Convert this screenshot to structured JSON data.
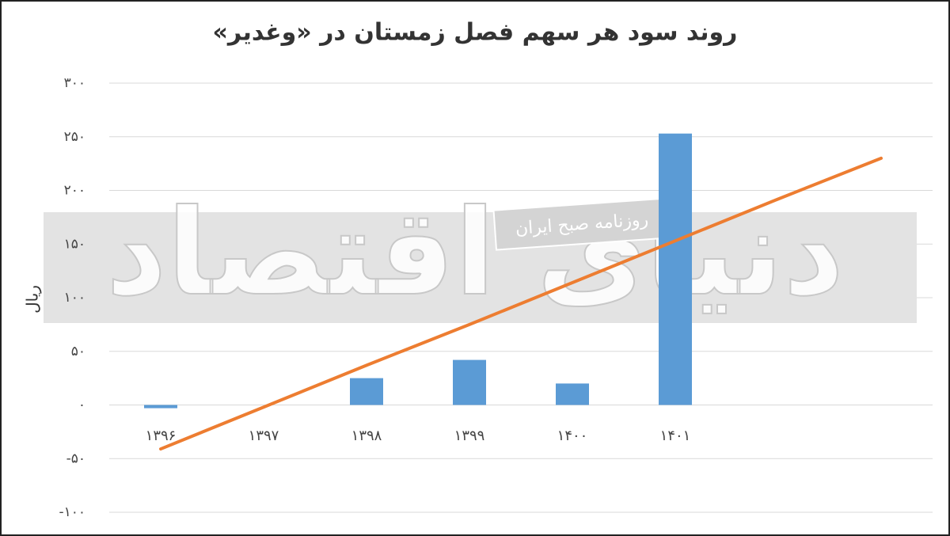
{
  "chart_data": {
    "type": "bar",
    "title": "روند سود هر سهم فصل زمستان در «وغدیر»",
    "y_label": "ریال",
    "categories": [
      "۱۳۹۶",
      "۱۳۹۷",
      "۱۳۹۸",
      "۱۳۹۹",
      "۱۴۰۰",
      "۱۴۰۱",
      null,
      null
    ],
    "series": [
      {
        "type": "bar",
        "color": "#5b9bd5",
        "values": [
          -3,
          0,
          25,
          42,
          20,
          253,
          null,
          null
        ]
      },
      {
        "type": "line",
        "color": "#ed7d31",
        "values": [
          -41,
          -2,
          37,
          75,
          114,
          153,
          192,
          230
        ]
      }
    ],
    "ylim": [
      -100,
      300
    ],
    "yticks": [
      {
        "value": -100,
        "label": "-۱۰۰"
      },
      {
        "value": -50,
        "label": "-۵۰"
      },
      {
        "value": 0,
        "label": "۰"
      },
      {
        "value": 50,
        "label": "۵۰"
      },
      {
        "value": 100,
        "label": "۱۰۰"
      },
      {
        "value": 150,
        "label": "۱۵۰"
      },
      {
        "value": 200,
        "label": "۲۰۰"
      },
      {
        "value": 250,
        "label": "۲۵۰"
      },
      {
        "value": 300,
        "label": "۳۰۰"
      }
    ],
    "grid": true,
    "watermark": {
      "main": "دنیای اقتصاد",
      "sub": "روزنامه صبح ایران"
    }
  }
}
